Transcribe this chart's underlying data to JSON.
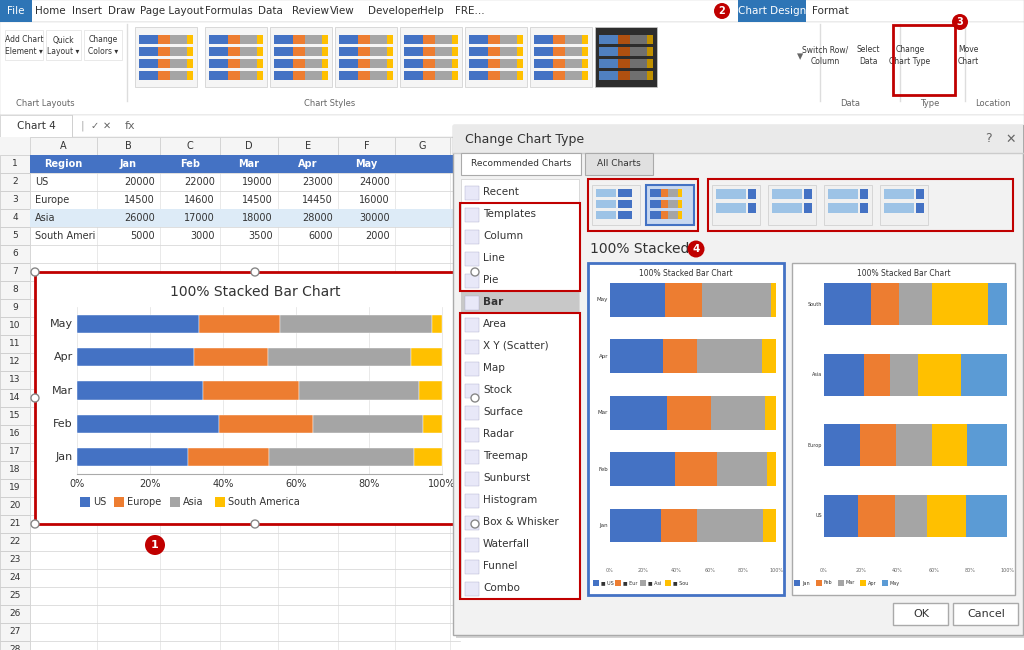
{
  "title": "100% Stacked Bar Chart",
  "months": [
    "Jan",
    "Feb",
    "Mar",
    "Apr",
    "May"
  ],
  "regions": [
    "US",
    "Europe",
    "Asia",
    "South America"
  ],
  "data": {
    "US": [
      20000,
      22000,
      19000,
      23000,
      24000
    ],
    "Europe": [
      14500,
      14600,
      14500,
      14450,
      16000
    ],
    "Asia": [
      26000,
      17000,
      18000,
      28000,
      30000
    ],
    "South America": [
      5000,
      3000,
      3500,
      6000,
      2000
    ]
  },
  "colors": {
    "US": "#4472C4",
    "Europe": "#ED7D31",
    "Asia": "#A5A5A5",
    "South America": "#FFC000"
  },
  "menu_items": [
    "File",
    "Home",
    "Insert",
    "Draw",
    "Page Layout",
    "Formulas",
    "Data",
    "Review",
    "View",
    "Developer",
    "Help",
    "FRE...",
    "Chart Design",
    "Format"
  ],
  "chart_types": [
    "Recent",
    "Templates",
    "Column",
    "Line",
    "Pie",
    "Bar",
    "Area",
    "X Y (Scatter)",
    "Map",
    "Stock",
    "Surface",
    "Radar",
    "Treemap",
    "Sunburst",
    "Histogram",
    "Box & Whisker",
    "Waterfall",
    "Funnel",
    "Combo"
  ],
  "toolbar_labels": [
    "Chart Layouts",
    "Chart Styles",
    "Data",
    "Type",
    "Location"
  ],
  "bg_excel": "#F0F0F0",
  "bg_white": "#FFFFFF",
  "bg_dialog": "#F2F2F2",
  "color_blue_tab": "#2E75B6",
  "color_header_blue": "#4472C4",
  "color_red_border": "#C00000",
  "color_grid": "#D0D0D0",
  "color_text_dark": "#333333",
  "color_text_mid": "#666666",
  "color_bar_selected": "#C8D8F0",
  "color_selected_highlight": "#B8CCE4"
}
